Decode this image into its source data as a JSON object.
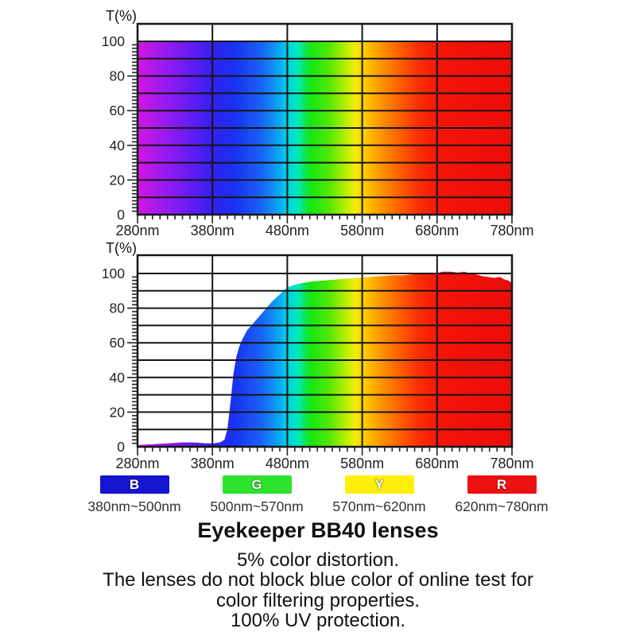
{
  "chart_data": [
    {
      "type": "area",
      "name": "source-spectrum",
      "title": "",
      "ylabel": "T(%)",
      "x_ticks": [
        "280nm",
        "380nm",
        "480nm",
        "580nm",
        "680nm",
        "780nm"
      ],
      "y_ticks": [
        "0",
        "20",
        "40",
        "60",
        "80",
        "100"
      ],
      "x_range_nm": [
        280,
        780
      ],
      "ylim": [
        0,
        110
      ],
      "y_gridline_step_pct": 10,
      "x_minor_tick_step_nm": 10,
      "y_minor_tick_step_pct": 2,
      "grid": true,
      "fill": "visible-spectrum-gradient",
      "points": [
        [
          280,
          100
        ],
        [
          780,
          100
        ]
      ]
    },
    {
      "type": "area",
      "name": "bb40-lens-transmission",
      "title": "",
      "ylabel": "T(%)",
      "x_ticks": [
        "280nm",
        "380nm",
        "480nm",
        "580nm",
        "680nm",
        "780nm"
      ],
      "y_ticks": [
        "0",
        "20",
        "40",
        "60",
        "80",
        "100"
      ],
      "x_range_nm": [
        280,
        780
      ],
      "ylim": [
        0,
        110
      ],
      "y_gridline_step_pct": 10,
      "x_minor_tick_step_nm": 10,
      "y_minor_tick_step_pct": 2,
      "grid": true,
      "fill": "visible-spectrum-gradient",
      "points": [
        [
          280,
          1
        ],
        [
          300,
          1.5
        ],
        [
          320,
          2
        ],
        [
          340,
          2.5
        ],
        [
          355,
          2.5
        ],
        [
          370,
          2
        ],
        [
          382,
          2
        ],
        [
          390,
          2.5
        ],
        [
          396,
          4
        ],
        [
          400,
          10
        ],
        [
          404,
          25
        ],
        [
          408,
          42
        ],
        [
          412,
          52
        ],
        [
          416,
          58
        ],
        [
          420,
          62
        ],
        [
          426,
          67
        ],
        [
          432,
          70
        ],
        [
          440,
          74
        ],
        [
          450,
          79
        ],
        [
          460,
          84
        ],
        [
          470,
          88
        ],
        [
          480,
          92
        ],
        [
          490,
          93.5
        ],
        [
          500,
          94.5
        ],
        [
          515,
          95.5
        ],
        [
          530,
          96
        ],
        [
          545,
          96.5
        ],
        [
          560,
          97
        ],
        [
          575,
          97.5
        ],
        [
          590,
          98
        ],
        [
          605,
          98.5
        ],
        [
          620,
          99
        ],
        [
          635,
          99
        ],
        [
          648,
          99.5
        ],
        [
          658,
          100
        ],
        [
          668,
          100.5
        ],
        [
          678,
          100
        ],
        [
          688,
          101
        ],
        [
          698,
          101
        ],
        [
          708,
          100.5
        ],
        [
          716,
          101
        ],
        [
          724,
          100
        ],
        [
          732,
          99.5
        ],
        [
          740,
          98.5
        ],
        [
          748,
          98
        ],
        [
          756,
          97.5
        ],
        [
          764,
          98
        ],
        [
          770,
          96.5
        ],
        [
          775,
          96
        ],
        [
          780,
          94.5
        ]
      ]
    }
  ],
  "spectrum_gradient": [
    [
      0.0,
      "#d217dd"
    ],
    [
      0.06,
      "#a31aee"
    ],
    [
      0.13,
      "#6e1cf4"
    ],
    [
      0.2,
      "#3420f0"
    ],
    [
      0.26,
      "#1832f2"
    ],
    [
      0.33,
      "#1b62f6"
    ],
    [
      0.37,
      "#0d9af4"
    ],
    [
      0.4,
      "#00d2e8"
    ],
    [
      0.43,
      "#00eab4"
    ],
    [
      0.46,
      "#16e416"
    ],
    [
      0.51,
      "#4fe806"
    ],
    [
      0.55,
      "#a8ee00"
    ],
    [
      0.58,
      "#f0ee00"
    ],
    [
      0.61,
      "#ffc800"
    ],
    [
      0.65,
      "#ff9400"
    ],
    [
      0.7,
      "#ff6000"
    ],
    [
      0.75,
      "#fb2e06"
    ],
    [
      0.81,
      "#f41408"
    ],
    [
      1.0,
      "#ea0d08"
    ]
  ],
  "legend": {
    "items": [
      {
        "letter": "B",
        "box_color": "#1515cf",
        "range": "380nm~500nm"
      },
      {
        "letter": "G",
        "box_color": "#2ee32e",
        "range": "500nm~570nm"
      },
      {
        "letter": "Y",
        "box_color": "#ffef09",
        "range": "570nm~620nm"
      },
      {
        "letter": "R",
        "box_color": "#ee1111",
        "range": "620nm~780nm"
      }
    ]
  },
  "caption": {
    "title": "Eyekeeper BB40 lenses",
    "lines": [
      "5% color distortion.",
      "The lenses do not block blue color of online test for",
      "color filtering properties.",
      "100% UV protection."
    ]
  }
}
